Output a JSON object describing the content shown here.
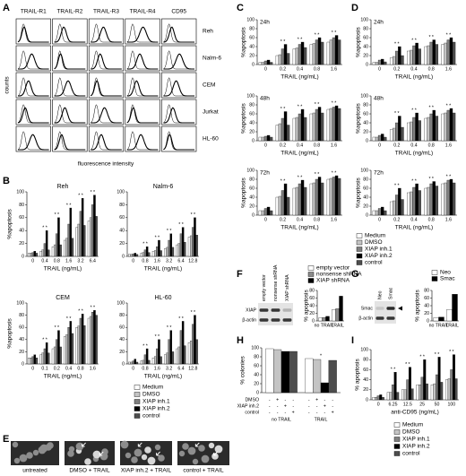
{
  "panels": [
    "A",
    "B",
    "C",
    "D",
    "E",
    "F",
    "G",
    "H",
    "I"
  ],
  "A": {
    "receptors": [
      "TRAIL-R1",
      "TRAIL-R2",
      "TRAIL-R3",
      "TRAIL-R4",
      "CD95"
    ],
    "cell_lines": [
      "Reh",
      "Nalm-6",
      "CEM",
      "Jurkat",
      "HL-60"
    ],
    "y_label": "counts",
    "x_label": "fluorescence intensity"
  },
  "B": {
    "y_label": "%apoptosis",
    "x_label": "TRAIL (ng/mL)",
    "ylim": [
      0,
      100
    ],
    "yticks": [
      0,
      20,
      40,
      60,
      80,
      100
    ],
    "legend": [
      {
        "name": "Medium",
        "color": "#ffffff"
      },
      {
        "name": "DMSO",
        "color": "#c4c4c4"
      },
      {
        "name": "XIAP inh.1",
        "color": "#808080"
      },
      {
        "name": "XIAP inh.2",
        "color": "#000000"
      },
      {
        "name": "control",
        "color": "#4d4d4d"
      }
    ],
    "charts": [
      {
        "title": "Reh",
        "categories": [
          "0",
          "0.4",
          "0.8",
          "1.6",
          "3.2",
          "6.4"
        ],
        "sig": [
          null,
          "* *",
          "* *",
          "* *",
          "* *",
          "* *"
        ],
        "series": [
          {
            "values": [
              5,
              8,
              15,
              25,
              45,
              55
            ]
          },
          {
            "values": [
              5,
              10,
              18,
              28,
              50,
              60
            ]
          },
          {
            "values": [
              6,
              20,
              35,
              50,
              70,
              80
            ]
          },
          {
            "values": [
              8,
              40,
              60,
              75,
              90,
              95
            ]
          },
          {
            "values": [
              5,
              10,
              18,
              28,
              48,
              62
            ]
          }
        ]
      },
      {
        "title": "Nalm-6",
        "categories": [
          "0",
          "0.8",
          "1.6",
          "3.2",
          "6.4",
          "12.8"
        ],
        "sig": [
          null,
          "* *",
          "* *",
          "* *",
          "* *",
          "* *"
        ],
        "series": [
          {
            "values": [
              3,
              5,
              8,
              12,
              18,
              30
            ]
          },
          {
            "values": [
              3,
              6,
              9,
              14,
              20,
              32
            ]
          },
          {
            "values": [
              4,
              10,
              15,
              25,
              35,
              45
            ]
          },
          {
            "values": [
              5,
              15,
              25,
              35,
              45,
              60
            ]
          },
          {
            "values": [
              3,
              6,
              9,
              14,
              22,
              33
            ]
          }
        ]
      },
      {
        "title": "CEM",
        "categories": [
          "0",
          "0.1",
          "0.2",
          "0.4",
          "0.8",
          "1.6"
        ],
        "sig": [
          null,
          "* *",
          "* *",
          "* *",
          "* *",
          "* *"
        ],
        "series": [
          {
            "values": [
              10,
              15,
              25,
              45,
              60,
              75
            ]
          },
          {
            "values": [
              10,
              18,
              28,
              48,
              62,
              78
            ]
          },
          {
            "values": [
              12,
              25,
              40,
              60,
              75,
              85
            ]
          },
          {
            "values": [
              15,
              35,
              55,
              70,
              82,
              88
            ]
          },
          {
            "values": [
              10,
              18,
              28,
              50,
              63,
              80
            ]
          }
        ]
      },
      {
        "title": "HL-60",
        "categories": [
          "0",
          "0.8",
          "1.6",
          "3.2",
          "6.4",
          "12.8"
        ],
        "sig": [
          null,
          "* *",
          "* *",
          "* *",
          "* *",
          "* *"
        ],
        "series": [
          {
            "values": [
              3,
              5,
              10,
              15,
              25,
              35
            ]
          },
          {
            "values": [
              3,
              6,
              12,
              18,
              28,
              38
            ]
          },
          {
            "values": [
              5,
              15,
              25,
              40,
              55,
              65
            ]
          },
          {
            "values": [
              8,
              25,
              40,
              55,
              70,
              80
            ]
          },
          {
            "values": [
              3,
              6,
              12,
              20,
              30,
              40
            ]
          }
        ]
      }
    ]
  },
  "C": {
    "y_label": "%apoptosis",
    "x_label": "TRAIL (ng/mL)",
    "ylim": [
      0,
      100
    ],
    "yticks": [
      0,
      20,
      40,
      60,
      80,
      100
    ],
    "legend": [
      {
        "name": "Medium",
        "color": "#ffffff"
      },
      {
        "name": "DMSO",
        "color": "#c4c4c4"
      },
      {
        "name": "XIAP inh.1",
        "color": "#808080"
      },
      {
        "name": "XIAP inh.2",
        "color": "#000000"
      },
      {
        "name": "control",
        "color": "#4d4d4d"
      }
    ],
    "charts": [
      {
        "title": "24h",
        "categories": [
          "0",
          "0.2",
          "0.4",
          "0.8",
          "1.6"
        ],
        "sig": [
          null,
          "* *",
          "* *",
          "* *",
          "* *"
        ],
        "series": [
          {
            "values": [
              5,
              20,
              35,
              45,
              50
            ]
          },
          {
            "values": [
              5,
              22,
              37,
              47,
              55
            ]
          },
          {
            "values": [
              8,
              35,
              45,
              55,
              60
            ]
          },
          {
            "values": [
              10,
              45,
              50,
              60,
              65
            ]
          },
          {
            "values": [
              5,
              25,
              38,
              50,
              55
            ]
          }
        ]
      },
      {
        "title": "48h",
        "categories": [
          "0",
          "0.2",
          "0.4",
          "0.8",
          "1.6"
        ],
        "sig": [
          null,
          "* *",
          "* *",
          "* *",
          "* *"
        ],
        "series": [
          {
            "values": [
              8,
              35,
              50,
              60,
              70
            ]
          },
          {
            "values": [
              8,
              38,
              52,
              62,
              72
            ]
          },
          {
            "values": [
              10,
              50,
              60,
              70,
              75
            ]
          },
          {
            "values": [
              12,
              65,
              70,
              75,
              78
            ]
          },
          {
            "values": [
              8,
              35,
              52,
              62,
              72
            ]
          }
        ]
      },
      {
        "title": "72h",
        "categories": [
          "0",
          "0.2",
          "0.4",
          "0.8",
          "1.6"
        ],
        "sig": [
          null,
          "* *",
          "* *",
          "* *",
          "* *"
        ],
        "series": [
          {
            "values": [
              10,
              40,
              60,
              70,
              80
            ]
          },
          {
            "values": [
              10,
              42,
              62,
              72,
              82
            ]
          },
          {
            "values": [
              15,
              55,
              70,
              80,
              85
            ]
          },
          {
            "values": [
              18,
              70,
              78,
              85,
              88
            ]
          },
          {
            "values": [
              10,
              40,
              62,
              72,
              82
            ]
          }
        ]
      }
    ]
  },
  "D": {
    "y_label": "%apoptosis",
    "x_label": "TRAIL (ng/mL)",
    "ylim": [
      0,
      100
    ],
    "yticks": [
      0,
      20,
      40,
      60,
      80,
      100
    ],
    "charts": [
      {
        "title": "24h",
        "categories": [
          "0",
          "0.2",
          "0.4",
          "0.8",
          "1.6"
        ],
        "sig": [
          null,
          "* *",
          "* *",
          "* *",
          "* *"
        ],
        "series": [
          {
            "values": [
              5,
              15,
              30,
              40,
              45
            ]
          },
          {
            "values": [
              5,
              18,
              32,
              42,
              48
            ]
          },
          {
            "values": [
              10,
              30,
              42,
              50,
              55
            ]
          },
          {
            "values": [
              12,
              40,
              48,
              55,
              60
            ]
          },
          {
            "values": [
              6,
              20,
              35,
              45,
              50
            ]
          }
        ]
      },
      {
        "title": "48h",
        "categories": [
          "0",
          "0.2",
          "0.4",
          "0.8",
          "1.6"
        ],
        "sig": [
          null,
          "* *",
          "* *",
          "* *",
          "* *"
        ],
        "series": [
          {
            "values": [
              8,
              25,
              40,
              50,
              60
            ]
          },
          {
            "values": [
              8,
              28,
              42,
              52,
              62
            ]
          },
          {
            "values": [
              12,
              40,
              52,
              60,
              68
            ]
          },
          {
            "values": [
              15,
              55,
              62,
              68,
              72
            ]
          },
          {
            "values": [
              8,
              30,
              45,
              55,
              62
            ]
          }
        ]
      },
      {
        "title": "72h",
        "categories": [
          "0",
          "0.2",
          "0.4",
          "0.8",
          "1.6"
        ],
        "sig": [
          null,
          "* *",
          "* *",
          "* *",
          "* *"
        ],
        "series": [
          {
            "values": [
              10,
              30,
              50,
              60,
              70
            ]
          },
          {
            "values": [
              10,
              32,
              52,
              62,
              72
            ]
          },
          {
            "values": [
              15,
              45,
              62,
              70,
              78
            ]
          },
          {
            "values": [
              18,
              60,
              70,
              75,
              80
            ]
          },
          {
            "values": [
              10,
              35,
              55,
              65,
              72
            ]
          }
        ]
      }
    ]
  },
  "E": {
    "captions": [
      "untreated",
      "DMSO + TRAIL",
      "XIAP inh.2 + TRAIL",
      "control + TRAIL"
    ]
  },
  "F": {
    "lanes": [
      "empty vector",
      "nonsense shRNA",
      "XIAP shRNA"
    ],
    "bands": [
      "XIAP",
      "β-actin"
    ],
    "chart": {
      "y_label": "% apoptosis",
      "ylim": [
        0,
        80
      ],
      "yticks": [
        0,
        20,
        40,
        60,
        80
      ],
      "categories": [
        "no TRAIL",
        "TRAIL"
      ],
      "series": [
        {
          "name": "empty vector",
          "color": "#ffffff",
          "values": [
            8,
            30
          ]
        },
        {
          "name": "nonsense shRNA",
          "color": "#8a8a8a",
          "values": [
            9,
            32
          ]
        },
        {
          "name": "XIAP shRNA",
          "color": "#000000",
          "values": [
            12,
            65
          ]
        }
      ]
    }
  },
  "G": {
    "lanes": [
      "Neo",
      "Smac"
    ],
    "bands": [
      "Smac",
      "β-actin"
    ],
    "chart": {
      "y_label": "% apoptosis",
      "ylim": [
        0,
        80
      ],
      "yticks": [
        0,
        20,
        40,
        60,
        80
      ],
      "categories": [
        "no TRAIL",
        "TRAIL"
      ],
      "series": [
        {
          "name": "Neo",
          "color": "#ffffff",
          "values": [
            8,
            30
          ]
        },
        {
          "name": "Smac",
          "color": "#000000",
          "values": [
            10,
            70
          ]
        }
      ]
    }
  },
  "H": {
    "y_label": "% colonies",
    "ylim": [
      0,
      100
    ],
    "yticks": [
      0,
      20,
      40,
      60,
      80,
      100
    ],
    "categories": [
      "no TRAIL",
      "TRAIL"
    ],
    "sig": [
      null,
      "*"
    ],
    "series": [
      {
        "color": "#ffffff",
        "values": [
          98,
          76
        ]
      },
      {
        "color": "#c4c4c4",
        "values": [
          96,
          74
        ]
      },
      {
        "color": "#000000",
        "values": [
          92,
          22
        ]
      },
      {
        "color": "#4d4d4d",
        "values": [
          92,
          72
        ]
      }
    ],
    "treatments": [
      {
        "name": "DMSO",
        "signs": [
          "-",
          "+",
          "-",
          "-",
          "-",
          "+",
          "-",
          "-"
        ]
      },
      {
        "name": "XIAP inh.2",
        "signs": [
          "-",
          "-",
          "+",
          "-",
          "-",
          "-",
          "+",
          "-"
        ]
      },
      {
        "name": "control",
        "signs": [
          "-",
          "-",
          "-",
          "+",
          "-",
          "-",
          "-",
          "+"
        ]
      }
    ]
  },
  "I": {
    "y_label": "% apoptosis",
    "x_label": "anti-CD95 (ng/mL)",
    "ylim": [
      0,
      100
    ],
    "yticks": [
      0,
      20,
      40,
      60,
      80,
      100
    ],
    "categories": [
      "0",
      "6.25",
      "12.5",
      "25",
      "50",
      "100"
    ],
    "sig": [
      null,
      "* *",
      "* *",
      "* *",
      "* *",
      "* *"
    ],
    "legend": [
      {
        "name": "Medium",
        "color": "#ffffff"
      },
      {
        "name": "DMSO",
        "color": "#c4c4c4"
      },
      {
        "name": "XIAP inh.1",
        "color": "#808080"
      },
      {
        "name": "XIAP inh.2",
        "color": "#000000"
      },
      {
        "name": "control",
        "color": "#4d4d4d"
      }
    ],
    "series": [
      {
        "values": [
          5,
          15,
          20,
          30,
          30,
          40
        ]
      },
      {
        "values": [
          5,
          15,
          20,
          30,
          32,
          42
        ]
      },
      {
        "values": [
          8,
          30,
          40,
          45,
          50,
          60
        ]
      },
      {
        "values": [
          10,
          55,
          65,
          80,
          85,
          90
        ]
      },
      {
        "values": [
          5,
          15,
          22,
          32,
          35,
          42
        ]
      }
    ]
  }
}
